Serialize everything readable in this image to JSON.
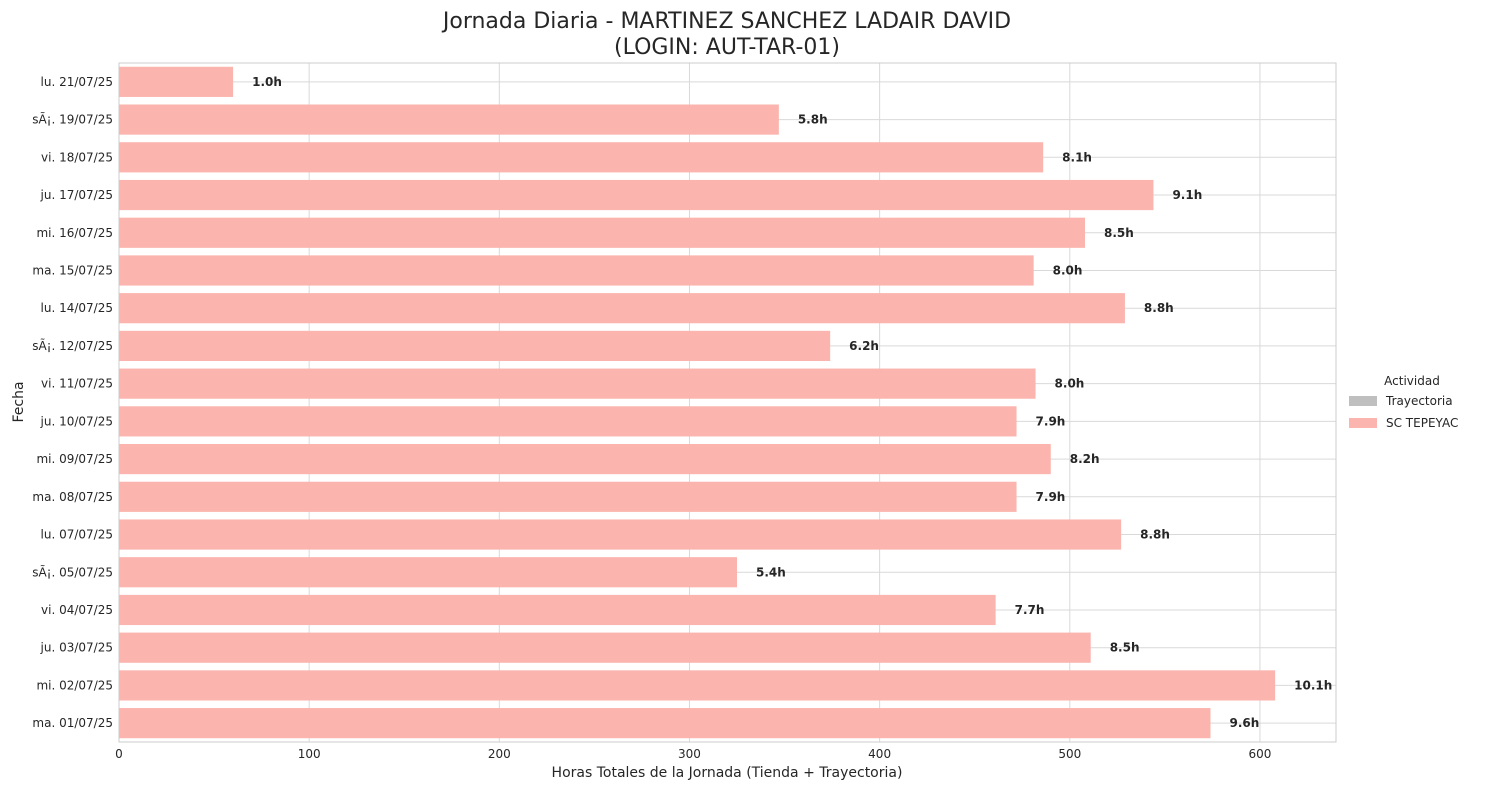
{
  "chart_data": {
    "type": "bar",
    "orientation": "horizontal",
    "stacked": true,
    "title_line1": "Jornada Diaria - MARTINEZ SANCHEZ LADAIR DAVID",
    "title_line2": "(LOGIN: AUT-TAR-01)",
    "xlabel": "Horas Totales de la Jornada (Tienda + Trayectoria)",
    "ylabel": "Fecha",
    "xlim": [
      0,
      640
    ],
    "xticks": [
      "0",
      "100",
      "200",
      "300",
      "400",
      "500",
      "600"
    ],
    "grid": true,
    "legend_placement": "right",
    "legend": {
      "title": "Actividad",
      "items": [
        {
          "name": "Trayectoria",
          "color": "#bfbfbf"
        },
        {
          "name": "SC TEPEYAC",
          "color": "#fbb4ae"
        }
      ]
    },
    "categories": [
      "lu. 21/07/25",
      "sÃ¡. 19/07/25",
      "vi. 18/07/25",
      "ju. 17/07/25",
      "mi. 16/07/25",
      "ma. 15/07/25",
      "lu. 14/07/25",
      "sÃ¡. 12/07/25",
      "vi. 11/07/25",
      "ju. 10/07/25",
      "mi. 09/07/25",
      "ma. 08/07/25",
      "lu. 07/07/25",
      "sÃ¡. 05/07/25",
      "vi. 04/07/25",
      "ju. 03/07/25",
      "mi. 02/07/25",
      "ma. 01/07/25"
    ],
    "series": [
      {
        "name": "Trayectoria",
        "color": "#bfbfbf",
        "values": [
          0,
          0,
          0,
          0,
          0,
          0,
          0,
          0,
          0,
          0,
          0,
          0,
          0,
          0,
          0,
          0,
          0,
          0
        ]
      },
      {
        "name": "SC TEPEYAC",
        "color": "#fbb4ae",
        "values": [
          60,
          347,
          486,
          544,
          508,
          481,
          529,
          374,
          482,
          472,
          490,
          472,
          527,
          325,
          461,
          511,
          608,
          574
        ]
      }
    ],
    "value_labels": [
      "1.0h",
      "5.8h",
      "8.1h",
      "9.1h",
      "8.5h",
      "8.0h",
      "8.8h",
      "6.2h",
      "8.0h",
      "7.9h",
      "8.2h",
      "7.9h",
      "8.8h",
      "5.4h",
      "7.7h",
      "8.5h",
      "10.1h",
      "9.6h"
    ]
  }
}
